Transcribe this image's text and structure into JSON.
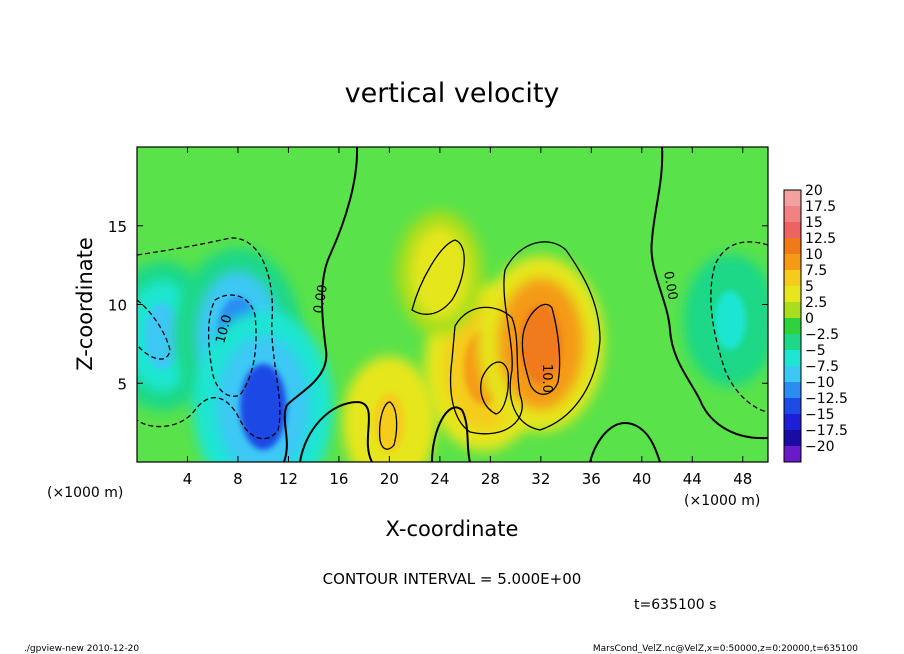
{
  "chart_data": {
    "type": "heatmap",
    "title": "vertical velocity",
    "xlabel": "X-coordinate",
    "ylabel": "Z-coordinate",
    "x_unit_note_left": "(×1000 m)",
    "x_unit_note_right": "(×1000 m)",
    "xlim": [
      0,
      50
    ],
    "ylim": [
      0,
      20
    ],
    "x_ticks": [
      4,
      8,
      12,
      16,
      20,
      24,
      28,
      32,
      36,
      40,
      44,
      48
    ],
    "y_ticks": [
      5,
      10,
      15
    ],
    "colorbar": {
      "levels": [
        20,
        17.5,
        15,
        12.5,
        10,
        7.5,
        5,
        2.5,
        0,
        -2.5,
        -5,
        -7.5,
        -10,
        -12.5,
        -15,
        -17.5,
        -20
      ],
      "level_labels": [
        "20",
        "17.5",
        "15",
        "12.5",
        "10",
        "7.5",
        "5",
        "2.5",
        "0",
        "−2.5",
        "−5",
        "−7.5",
        "−10",
        "−12.5",
        "−15",
        "−17.5",
        "−20"
      ],
      "colors": [
        "#f4a0a0",
        "#f08282",
        "#ee6262",
        "#f07a1a",
        "#f59a14",
        "#f5cc1e",
        "#e6e61e",
        "#a8de1e",
        "#2ed23a",
        "#1ed887",
        "#1ee6d2",
        "#3cc8f5",
        "#2b8cf2",
        "#1e4ae6",
        "#1e1ed6",
        "#1a0aa6",
        "#6a1ac8"
      ]
    },
    "features": [
      {
        "kind": "downdraft",
        "x": 2,
        "z": 8,
        "value": -8
      },
      {
        "kind": "downdraft",
        "x": 8,
        "z": 8,
        "value": -11
      },
      {
        "kind": "downdraft",
        "x": 10,
        "z": 3.5,
        "value": -13
      },
      {
        "kind": "downdraft",
        "x": 47,
        "z": 9,
        "value": -6
      },
      {
        "kind": "updraft",
        "x": 27.5,
        "z": 6,
        "value": 10
      },
      {
        "kind": "updraft",
        "x": 32,
        "z": 7.5,
        "value": 11
      },
      {
        "kind": "updraft",
        "x": 20,
        "z": 2.5,
        "value": 6
      },
      {
        "kind": "updraft",
        "x": 24,
        "z": 12,
        "value": 5
      }
    ],
    "contour_labels": [
      "0.00",
      "10.0",
      "10.0",
      "0.00"
    ]
  },
  "contour_interval_text": "CONTOUR INTERVAL = 5.000E+00",
  "time_text": "t=635100  s",
  "footer_left": "./gpview-new  2010-12-20",
  "footer_right": "MarsCond_VelZ.nc@VelZ,x=0:50000,z=0:20000,t=635100"
}
